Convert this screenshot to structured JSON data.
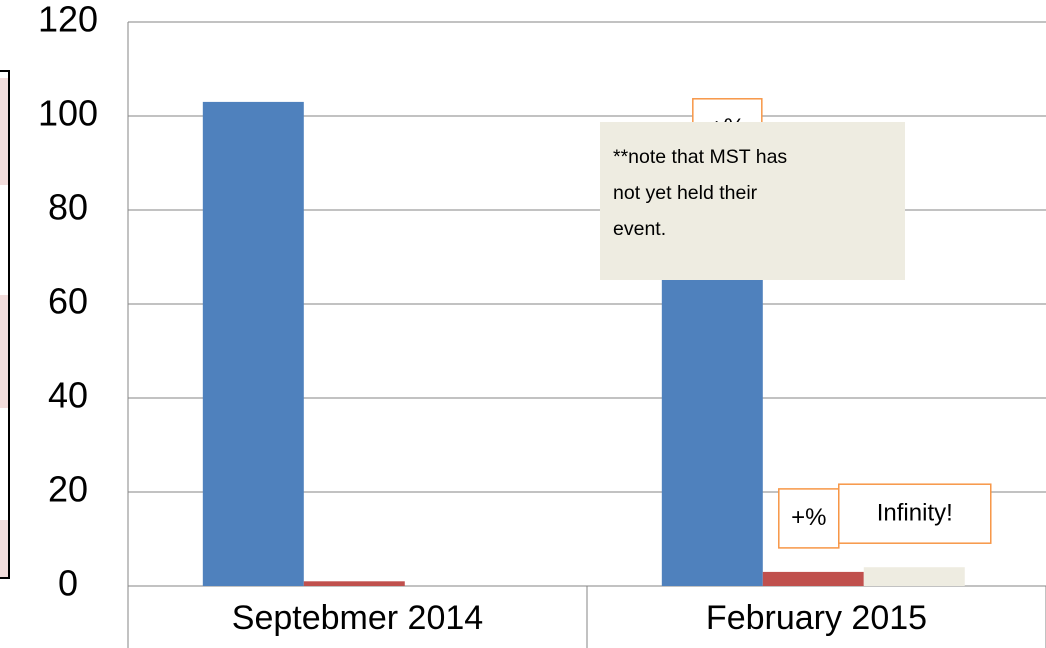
{
  "chart_data": {
    "type": "bar",
    "categories": [
      "Septebmer 2014",
      "February 2015"
    ],
    "series": [
      {
        "color": "#4f81bd",
        "values": [
          103,
          86
        ]
      },
      {
        "color": "#c0504d",
        "values": [
          1,
          3
        ]
      },
      {
        "color": "#eeece1",
        "values": [
          0,
          4
        ]
      }
    ],
    "ylim": [
      0,
      120
    ],
    "yticks": [
      0,
      20,
      40,
      60,
      80,
      100,
      120
    ],
    "grid": true,
    "annotations": [
      "+%",
      "+%",
      "Infinity!"
    ],
    "note": [
      "**note that MST has",
      "not yet held  their",
      "event."
    ]
  }
}
